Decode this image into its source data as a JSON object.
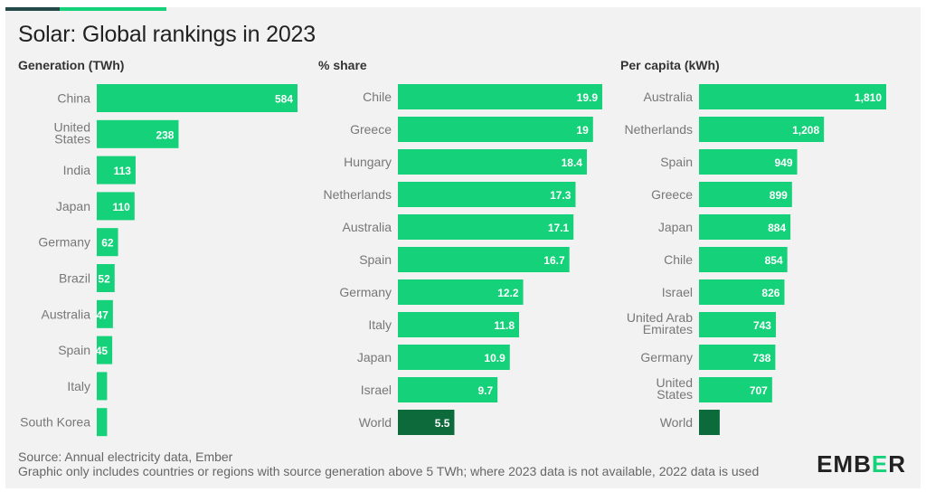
{
  "title": "Solar: Global rankings in 2023",
  "colors": {
    "bar": "#15d17a",
    "world_bar": "#0c6a3b",
    "label_text": "#ffffff",
    "category_text": "#777777"
  },
  "chart_data": [
    {
      "type": "bar",
      "orientation": "horizontal",
      "title": "Generation (TWh)",
      "categories": [
        "China",
        "United States",
        "India",
        "Japan",
        "Germany",
        "Brazil",
        "Australia",
        "Spain",
        "Italy",
        "South Korea"
      ],
      "values": [
        584,
        238,
        113,
        110,
        62,
        52,
        47,
        45,
        30,
        30
      ],
      "data_labels": [
        "584",
        "238",
        "113",
        "110",
        "62",
        "52",
        "47",
        "45",
        "",
        ""
      ]
    },
    {
      "type": "bar",
      "orientation": "horizontal",
      "title": "% share",
      "categories": [
        "Chile",
        "Greece",
        "Hungary",
        "Netherlands",
        "Australia",
        "Spain",
        "Germany",
        "Italy",
        "Japan",
        "Israel",
        "World"
      ],
      "values": [
        19.9,
        19,
        18.4,
        17.3,
        17.1,
        16.7,
        12.2,
        11.8,
        10.9,
        9.7,
        5.5
      ],
      "data_labels": [
        "19.9",
        "19",
        "18.4",
        "17.3",
        "17.1",
        "16.7",
        "12.2",
        "11.8",
        "10.9",
        "9.7",
        "5.5"
      ]
    },
    {
      "type": "bar",
      "orientation": "horizontal",
      "title": "Per capita (kWh)",
      "categories": [
        "Australia",
        "Netherlands",
        "Spain",
        "Greece",
        "Japan",
        "Chile",
        "Israel",
        "United Arab Emirates",
        "Germany",
        "United States",
        "World"
      ],
      "values": [
        1810,
        1208,
        949,
        899,
        884,
        854,
        826,
        743,
        738,
        707,
        200
      ],
      "data_labels": [
        "1,810",
        "1,208",
        "949",
        "899",
        "884",
        "854",
        "826",
        "743",
        "738",
        "707",
        ""
      ]
    }
  ],
  "footnotes": [
    "Source: Annual electricity data, Ember",
    "Graphic only includes countries or regions with source generation above 5 TWh; where 2023 data is not available, 2022 data is used"
  ],
  "logo": {
    "prefix": "EMB",
    "accent": "E",
    "suffix": "R"
  }
}
